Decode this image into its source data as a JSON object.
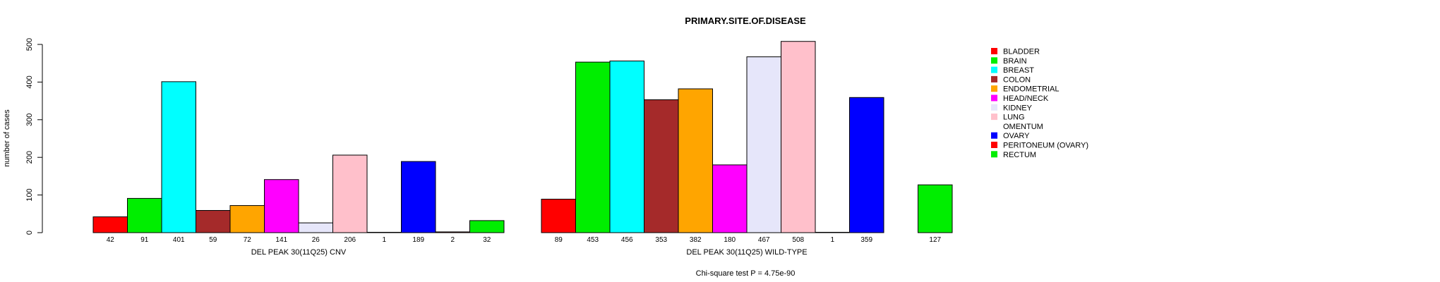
{
  "chart_data": {
    "type": "bar",
    "title": "PRIMARY.SITE.OF.DISEASE",
    "ylabel": "number of cases",
    "ylim": [
      0,
      500
    ],
    "yticks": [
      0,
      100,
      200,
      300,
      400,
      500
    ],
    "grid": false,
    "legend_position": "right",
    "categories": [
      "BLADDER",
      "BRAIN",
      "BREAST",
      "COLON",
      "ENDOMETRIAL",
      "HEAD/NECK",
      "KIDNEY",
      "LUNG",
      "OMENTUM",
      "OVARY",
      "PERITONEUM (OVARY)",
      "RECTUM"
    ],
    "colors": [
      "#ff0000",
      "#00ee00",
      "#00ffff",
      "#a52a2a",
      "#ffa500",
      "#ff00ff",
      "#e6e6fa",
      "#ffc0cb",
      "#ffffff",
      "#0000ff",
      "#ff0000",
      "#00ee00"
    ],
    "series": [
      {
        "name": "DEL PEAK 30(11Q25) CNV",
        "values": [
          42,
          91,
          401,
          59,
          72,
          141,
          26,
          206,
          1,
          189,
          2,
          32
        ]
      },
      {
        "name": "DEL PEAK 30(11Q25) WILD-TYPE",
        "values": [
          89,
          453,
          456,
          353,
          382,
          180,
          467,
          508,
          1,
          359,
          0,
          127
        ]
      }
    ],
    "count_labels": [
      [
        "42",
        "91",
        "401",
        "59",
        "72",
        "141",
        "26",
        "206",
        "1",
        "189",
        "2",
        "32"
      ],
      [
        "89",
        "453",
        "456",
        "353",
        "382",
        "180",
        "467",
        "508",
        "1",
        "359",
        "",
        "127"
      ]
    ],
    "annotation": "Chi-square test P = 4.75e-90"
  }
}
